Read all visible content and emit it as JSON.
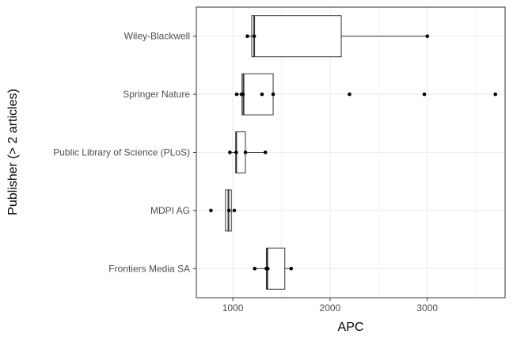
{
  "chart_data": {
    "type": "boxplot",
    "orientation": "horizontal",
    "xlabel": "APC",
    "ylabel": "Publisher (> 2 articles)",
    "xlim": [
      625,
      3800
    ],
    "x_ticks": [
      1000,
      2000,
      3000
    ],
    "grid": true,
    "categories": [
      "Wiley-Blackwell",
      "Springer Nature",
      "Public Library of Science (PLoS)",
      "MDPI AG",
      "Frontiers Media SA"
    ],
    "boxes": [
      {
        "category": "Wiley-Blackwell",
        "q1": 1195,
        "median": 1220,
        "q3": 2115,
        "whisker_low": 1150,
        "whisker_high": 3000
      },
      {
        "category": "Springer Nature",
        "q1": 1095,
        "median": 1110,
        "q3": 1415,
        "whisker_low": 1040,
        "whisker_high": 1415
      },
      {
        "category": "Public Library of Science (PLoS)",
        "q1": 1030,
        "median": 1035,
        "q3": 1130,
        "whisker_low": 970,
        "whisker_high": 1335
      },
      {
        "category": "MDPI AG",
        "q1": 925,
        "median": 955,
        "q3": 985,
        "whisker_low": 925,
        "whisker_high": 985
      },
      {
        "category": "Frontiers Media SA",
        "q1": 1345,
        "median": 1355,
        "q3": 1535,
        "whisker_low": 1225,
        "whisker_high": 1600
      }
    ],
    "points": [
      {
        "category": "Wiley-Blackwell",
        "values": [
          1150,
          1220,
          3000
        ]
      },
      {
        "category": "Springer Nature",
        "values": [
          1040,
          1090,
          1105,
          1300,
          1415,
          2200,
          2970,
          3700
        ]
      },
      {
        "category": "Public Library of Science (PLoS)",
        "values": [
          970,
          1035,
          1130,
          1335
        ]
      },
      {
        "category": "MDPI AG",
        "values": [
          775,
          960,
          1015
        ]
      },
      {
        "category": "Frontiers Media SA",
        "values": [
          1225,
          1345,
          1360,
          1600
        ]
      }
    ],
    "colors": {
      "box": "#333333",
      "point": "#000000",
      "grid": "#ebebeb",
      "panel_border": "#333333"
    }
  }
}
